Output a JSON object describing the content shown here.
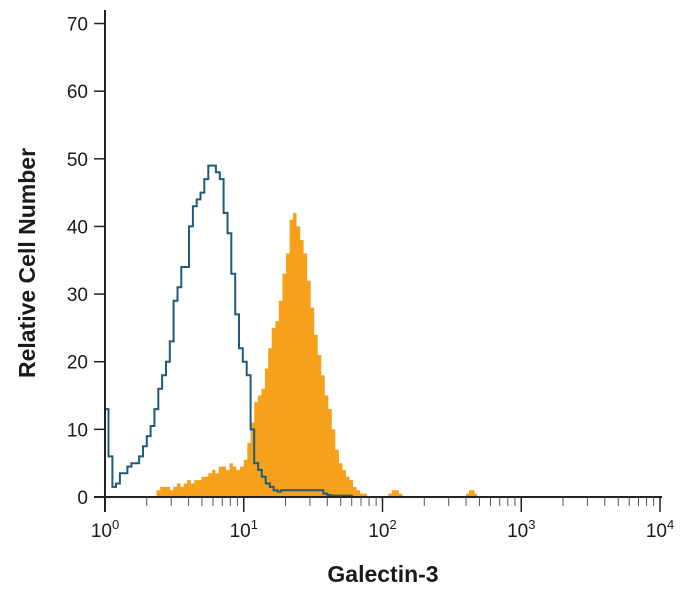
{
  "chart_data": {
    "type": "histogram",
    "title": "",
    "xlabel": "Galectin-3",
    "ylabel": "Relative Cell Number",
    "x_scale": "log",
    "xlim": [
      1,
      10000
    ],
    "ylim": [
      0,
      72
    ],
    "x_tick_labels": [
      {
        "value": 1,
        "base": "10",
        "exp": "0"
      },
      {
        "value": 10,
        "base": "10",
        "exp": "1"
      },
      {
        "value": 100,
        "base": "10",
        "exp": "2"
      },
      {
        "value": 1000,
        "base": "10",
        "exp": "3"
      },
      {
        "value": 10000,
        "base": "10",
        "exp": "4"
      }
    ],
    "y_ticks": [
      0,
      10,
      20,
      30,
      40,
      50,
      60,
      70
    ],
    "grid": false,
    "legend": "none",
    "colors": {
      "isotype_outline": "#1f5b7a",
      "stained_fill": "#f5a11c",
      "axis": "#222222"
    },
    "series": [
      {
        "style": "filled",
        "color": "#f5a11c",
        "x": [
          2.2,
          2.35,
          2.5,
          2.65,
          2.8,
          2.95,
          3.1,
          3.3,
          3.5,
          3.7,
          3.9,
          4.15,
          4.4,
          4.65,
          4.95,
          5.25,
          5.55,
          5.9,
          6.25,
          6.6,
          7.0,
          7.45,
          7.9,
          8.35,
          8.85,
          9.4,
          10.0,
          10.6,
          11.2,
          11.9,
          12.6,
          13.4,
          14.2,
          15.0,
          15.9,
          16.9,
          17.9,
          19.0,
          20.2,
          21.4,
          22.7,
          24.0,
          25.5,
          27.0,
          28.6,
          30.4,
          32.2,
          34.1,
          36.2,
          38.4,
          40.7,
          43.1,
          45.7,
          48.5,
          51.4,
          54.5,
          57.8,
          61.3,
          65.0,
          68.9,
          73.0,
          77.5,
          82.1,
          87.1,
          92.3,
          97.9,
          103.8,
          110.0,
          116.7,
          123.7,
          131.2,
          139.1,
          147.5,
          156.4,
          165.8,
          175.8,
          200,
          300,
          380,
          400,
          420,
          440,
          460,
          480,
          500,
          600,
          1000,
          3000,
          10000
        ],
        "values": [
          0,
          1,
          1.5,
          1.5,
          1.5,
          1,
          1.5,
          2,
          1.5,
          2,
          2.5,
          2,
          2.5,
          2.5,
          3,
          3,
          3.5,
          4,
          3.5,
          4.5,
          4.5,
          4,
          5,
          4.5,
          4,
          4.5,
          5.5,
          8,
          11,
          14,
          15,
          16,
          19,
          22,
          25,
          26,
          29,
          33,
          36,
          41,
          42,
          40,
          38,
          36,
          32,
          28,
          24,
          21,
          18,
          15,
          13,
          10,
          7,
          5,
          4,
          3,
          2.5,
          1.5,
          1,
          0.5,
          0.5,
          0,
          0,
          0,
          0,
          0,
          0,
          0.5,
          1,
          1,
          0.5,
          0,
          0,
          0,
          0,
          0,
          0,
          0,
          0,
          0.5,
          1,
          1,
          0.5,
          0,
          0,
          0,
          0,
          0,
          0
        ]
      },
      {
        "style": "outline",
        "color": "#1f5b7a",
        "x": [
          1.0,
          1.06,
          1.13,
          1.2,
          1.28,
          1.36,
          1.45,
          1.55,
          1.65,
          1.76,
          1.88,
          2.0,
          2.13,
          2.27,
          2.42,
          2.58,
          2.75,
          2.93,
          3.12,
          3.33,
          3.55,
          3.78,
          4.03,
          4.3,
          4.58,
          4.88,
          5.2,
          5.55,
          5.91,
          6.3,
          6.72,
          7.16,
          7.63,
          8.13,
          8.67,
          9.24,
          9.85,
          10.5,
          11.2,
          11.9,
          12.7,
          13.5,
          14.4,
          15.4,
          16.4,
          17.5,
          18.6,
          19.8,
          21.1,
          22.5,
          24.0,
          25.6,
          27.3,
          29.1,
          31.0,
          33.0,
          35.2,
          37.5,
          40.0,
          42.6,
          45.4,
          48.4,
          51.6,
          55.0,
          60,
          100,
          200,
          500,
          1000,
          5000,
          10000
        ],
        "values": [
          13,
          6,
          1.5,
          2,
          3.5,
          3.5,
          4.5,
          5,
          5,
          6,
          7.5,
          9,
          10.5,
          13,
          16,
          18,
          20,
          23,
          29,
          31,
          34,
          34,
          40,
          43,
          44,
          45,
          47,
          49,
          49,
          48,
          47,
          42,
          39,
          33,
          27,
          22,
          20,
          18,
          10,
          5,
          4,
          3,
          2,
          1.5,
          1,
          0.8,
          1,
          1,
          1,
          1,
          1,
          1,
          1,
          1,
          1,
          1,
          1,
          0.5,
          0.3,
          0.2,
          0.2,
          0.2,
          0.2,
          0.2,
          0,
          0,
          0,
          0,
          0,
          0,
          0
        ]
      }
    ]
  }
}
